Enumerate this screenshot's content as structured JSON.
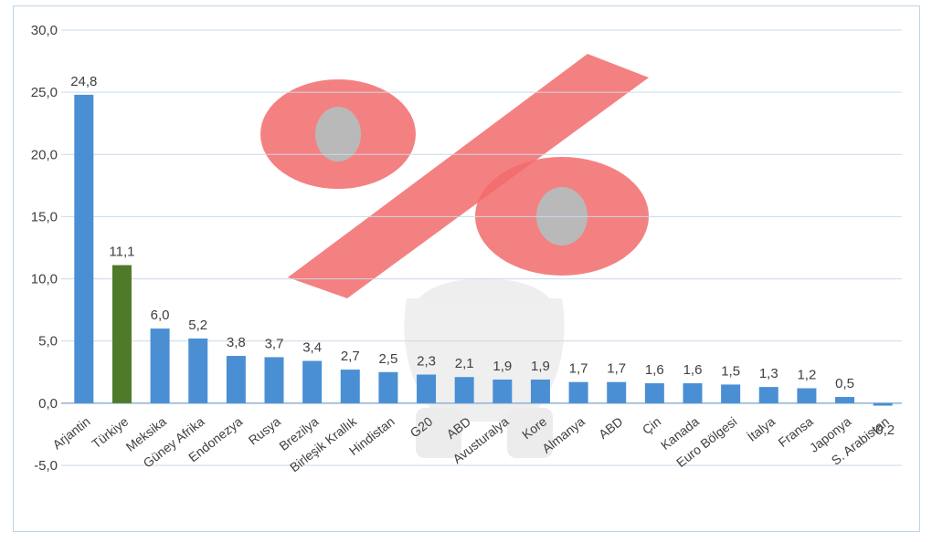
{
  "chart_data": {
    "type": "bar",
    "title": "",
    "xlabel": "",
    "ylabel": "",
    "ylim": [
      -5,
      30
    ],
    "yticks": [
      -5,
      0,
      5,
      10,
      15,
      20,
      25,
      30
    ],
    "ytick_labels": [
      "-5,0",
      "0,0",
      "5,0",
      "10,0",
      "15,0",
      "20,0",
      "25,0",
      "30,0"
    ],
    "grid": true,
    "categories": [
      "Arjantin",
      "Türkiye",
      "Meksika",
      "Güney Afrika",
      "Endonezya",
      "Rusya",
      "Brezilya",
      "Birleşik Krallık",
      "Hindistan",
      "G20",
      "ABD",
      "Avusturalya",
      "Kore",
      "Almanya",
      "ABD",
      "Çin",
      "Kanada",
      "Euro Bölgesi",
      "İtalya",
      "Fransa",
      "Japonya",
      "S. Arabistan"
    ],
    "values": [
      24.8,
      11.1,
      6.0,
      5.2,
      3.8,
      3.7,
      3.4,
      2.7,
      2.5,
      2.3,
      2.1,
      1.9,
      1.9,
      1.7,
      1.7,
      1.6,
      1.6,
      1.5,
      1.3,
      1.2,
      0.5,
      -0.2
    ],
    "value_labels": [
      "24,8",
      "11,1",
      "6,0",
      "5,2",
      "3,8",
      "3,7",
      "3,4",
      "2,7",
      "2,5",
      "2,3",
      "2,1",
      "1,9",
      "1,9",
      "1,7",
      "1,7",
      "1,6",
      "1,6",
      "1,5",
      "1,3",
      "1,2",
      "0,5",
      "-0,2"
    ],
    "highlight_index": 1,
    "colors": {
      "bar": "#4a8fd4",
      "bar_highlight": "#4e7a2a",
      "grid": "#c9daea",
      "axis": "#8fb2d4",
      "watermark": "#f26b6b"
    }
  },
  "watermark": {
    "icon": "percent-sign-figure-icon"
  }
}
